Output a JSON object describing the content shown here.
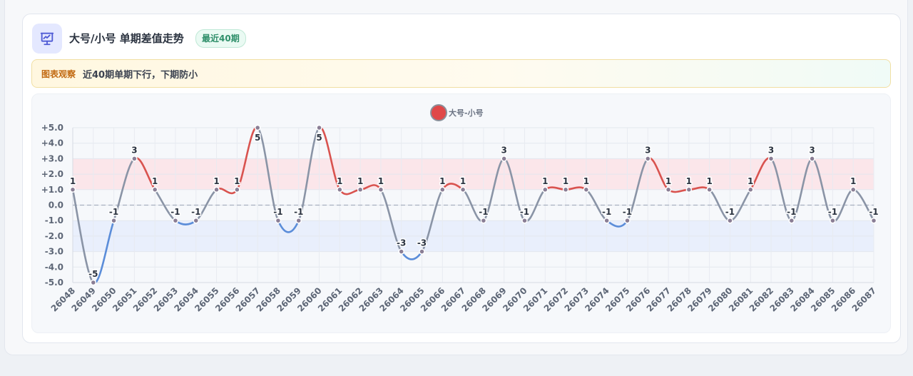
{
  "header": {
    "icon": "presentation-chart-icon",
    "title": "大号/小号 单期差值走势",
    "badge": "最近40期"
  },
  "observation": {
    "label": "图表观察",
    "text": "近40期单期下行，下期防小"
  },
  "colors": {
    "up": "#d9534f",
    "down": "#5b8dd9",
    "neutral": "#8a94a6",
    "upper_band": "#fbe3e6",
    "lower_band": "#e6edfb",
    "legend_dot": "#e04848"
  },
  "chart_data": {
    "type": "line",
    "legend": [
      "大号-小号"
    ],
    "legend_position": "top-center",
    "grid": true,
    "ylim": [
      -5,
      5
    ],
    "yticks": [
      "+5.0",
      "+4.0",
      "+3.0",
      "+2.0",
      "+1.0",
      "0.0",
      "-1.0",
      "-2.0",
      "-3.0",
      "-4.0",
      "-5.0"
    ],
    "bands": [
      {
        "from": 1,
        "to": 3,
        "color": "upper"
      },
      {
        "from": -3,
        "to": -1,
        "color": "lower"
      }
    ],
    "x": [
      "26048",
      "26049",
      "26050",
      "26051",
      "26052",
      "26053",
      "26054",
      "26055",
      "26056",
      "26057",
      "26058",
      "26059",
      "26060",
      "26061",
      "26062",
      "26063",
      "26064",
      "26065",
      "26066",
      "26067",
      "26068",
      "26069",
      "26070",
      "26071",
      "26072",
      "26073",
      "26074",
      "26075",
      "26076",
      "26077",
      "26078",
      "26079",
      "26080",
      "26081",
      "26082",
      "26083",
      "26084",
      "26085",
      "26086",
      "26087"
    ],
    "series": [
      {
        "name": "大号-小号",
        "values": [
          1,
          -5,
          -1,
          3,
          1,
          -1,
          -1,
          1,
          1,
          5,
          -1,
          -1,
          5,
          1,
          1,
          1,
          -3,
          -3,
          1,
          1,
          -1,
          3,
          -1,
          1,
          1,
          1,
          -1,
          -1,
          3,
          1,
          1,
          1,
          -1,
          1,
          3,
          -1,
          3,
          -1,
          1,
          -1
        ]
      }
    ]
  }
}
